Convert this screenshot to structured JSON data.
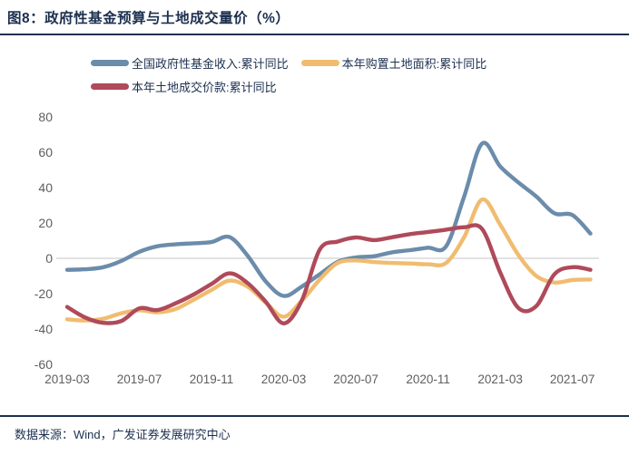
{
  "figure": {
    "title": "图8：政府性基金预算与土地成交量价（%）"
  },
  "footer": {
    "source": "数据来源：Wind，广发证券发展研究中心"
  },
  "colors": {
    "navy": "#1C304F",
    "axis_gray": "#5E5E5E",
    "zero_line": "#D0D0D0",
    "blue": "#6B8CAB",
    "orange": "#F0BC70",
    "red": "#AF4A5A"
  },
  "chart_data": {
    "type": "line",
    "title": "图8：政府性基金预算与土地成交量价（%）",
    "grid": "horizontal zero line only",
    "legend_position": "top",
    "ylim": [
      -60,
      80
    ],
    "y_ticks": [
      80,
      60,
      40,
      20,
      0,
      -20,
      -40,
      -60
    ],
    "x_tick_labels": [
      "2019-03",
      "2019-07",
      "2019-11",
      "2020-03",
      "2020-07",
      "2020-11",
      "2021-03",
      "2021-07"
    ],
    "months": [
      "2019-03",
      "2019-04",
      "2019-05",
      "2019-06",
      "2019-07",
      "2019-08",
      "2019-09",
      "2019-10",
      "2019-11",
      "2019-12",
      "2020-01",
      "2020-02",
      "2020-03",
      "2020-04",
      "2020-05",
      "2020-06",
      "2020-07",
      "2020-08",
      "2020-09",
      "2020-10",
      "2020-11",
      "2020-12",
      "2021-01",
      "2021-02",
      "2021-03",
      "2021-04",
      "2021-05",
      "2021-06",
      "2021-07",
      "2021-08"
    ],
    "series": [
      {
        "id": "gov-fund-revenue",
        "name": "全国政府性基金收入:累计同比",
        "color": "#6B8CAB",
        "values": [
          -6.5,
          -6.2,
          -5.0,
          -1.5,
          3.7,
          6.8,
          7.9,
          8.5,
          9.2,
          12.0,
          1.5,
          -13.0,
          -21.3,
          -16.0,
          -9.0,
          -2.0,
          0.5,
          1.2,
          3.4,
          4.6,
          6.0,
          6.8,
          35.0,
          65.0,
          52.0,
          43.0,
          35.0,
          25.5,
          24.5,
          14.0
        ]
      },
      {
        "id": "land-area-purchased",
        "name": "本年购置土地面积:累计同比",
        "color": "#F0BC70",
        "values": [
          -34.5,
          -35.2,
          -34.2,
          -31.1,
          -29.4,
          -30.5,
          -28.7,
          -23.5,
          -17.9,
          -12.6,
          -16.0,
          -25.0,
          -33.0,
          -24.0,
          -12.0,
          -2.6,
          -1.2,
          -2.1,
          -2.6,
          -2.9,
          -3.4,
          -2.6,
          12.0,
          33.3,
          19.0,
          2.0,
          -10.0,
          -13.7,
          -12.3,
          -12.0
        ]
      },
      {
        "id": "land-transaction-value",
        "name": "本年土地成交价款:累计同比",
        "color": "#AF4A5A",
        "values": [
          -27.5,
          -33.5,
          -36.5,
          -35.5,
          -28.3,
          -29.3,
          -25.5,
          -20.5,
          -14.5,
          -8.5,
          -14.0,
          -24.5,
          -36.8,
          -24.0,
          5.0,
          9.5,
          11.8,
          10.3,
          11.9,
          13.7,
          14.9,
          16.2,
          17.6,
          16.5,
          -8.0,
          -28.0,
          -27.0,
          -9.0,
          -5.0,
          -6.5
        ]
      }
    ]
  }
}
